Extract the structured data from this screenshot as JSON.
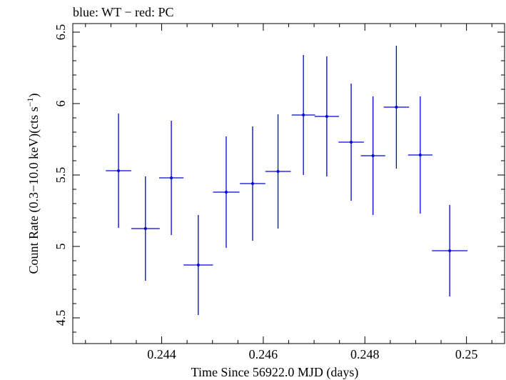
{
  "chart_data": {
    "type": "scatter",
    "title": "blue: WT − red: PC",
    "xlabel": "Time Since 56922.0 MJD (days)",
    "ylabel_main": "Count Rate (0.3−10.0 keV)(cts s",
    "ylabel_sup": "−1",
    "ylabel_end": ")",
    "xlim": [
      0.24225,
      0.25075
    ],
    "ylim": [
      4.32,
      6.56
    ],
    "x_ticks": [
      0.244,
      0.246,
      0.248,
      0.25
    ],
    "x_tick_labels": [
      "0.244",
      "0.246",
      "0.248",
      "0.25"
    ],
    "y_ticks": [
      4.5,
      5,
      5.5,
      6,
      6.5
    ],
    "y_tick_labels": [
      "4.5",
      "5",
      "5.5",
      "6",
      "6.5"
    ],
    "grid": false,
    "series": [
      {
        "color": "#0000dd",
        "points": [
          {
            "x": 0.24315,
            "xerr": 0.00025,
            "y": 5.53,
            "yerr": 0.4
          },
          {
            "x": 0.24368,
            "xerr": 0.00028,
            "y": 5.125,
            "yerr": 0.365
          },
          {
            "x": 0.24419,
            "xerr": 0.00024,
            "y": 5.48,
            "yerr": 0.4
          },
          {
            "x": 0.24472,
            "xerr": 0.00029,
            "y": 4.87,
            "yerr": 0.35
          },
          {
            "x": 0.24527,
            "xerr": 0.00026,
            "y": 5.38,
            "yerr": 0.39
          },
          {
            "x": 0.24579,
            "xerr": 0.00025,
            "y": 5.44,
            "yerr": 0.4
          },
          {
            "x": 0.24629,
            "xerr": 0.00025,
            "y": 5.525,
            "yerr": 0.4
          },
          {
            "x": 0.24679,
            "xerr": 0.00023,
            "y": 5.92,
            "yerr": 0.42
          },
          {
            "x": 0.24725,
            "xerr": 0.00024,
            "y": 5.91,
            "yerr": 0.42
          },
          {
            "x": 0.24773,
            "xerr": 0.00025,
            "y": 5.73,
            "yerr": 0.41
          },
          {
            "x": 0.24816,
            "xerr": 0.00024,
            "y": 5.635,
            "yerr": 0.415
          },
          {
            "x": 0.24862,
            "xerr": 0.00025,
            "y": 5.975,
            "yerr": 0.43
          },
          {
            "x": 0.24909,
            "xerr": 0.00024,
            "y": 5.64,
            "yerr": 0.41
          },
          {
            "x": 0.24967,
            "xerr": 0.00035,
            "y": 4.97,
            "yerr": 0.32
          }
        ]
      }
    ]
  }
}
